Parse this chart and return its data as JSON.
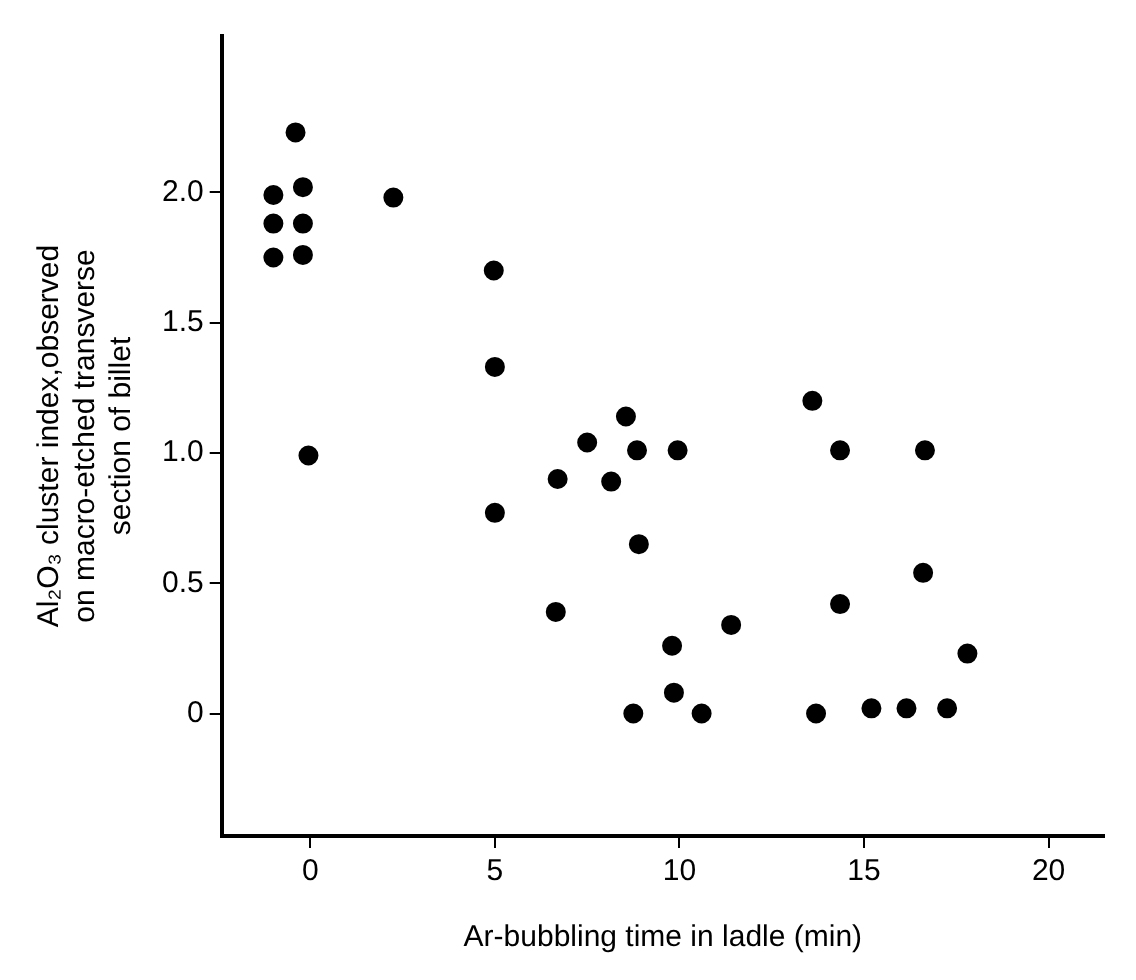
{
  "chart_data": {
    "type": "scatter",
    "xlabel": "Ar-bubbling time in ladle (min)",
    "ylabel": "Al₂O₃ cluster index,observed on macro-etched transverse section of billet",
    "x": [
      -1.0,
      -0.4,
      -0.2,
      -1.0,
      -0.2,
      -1.0,
      -0.2,
      -0.05,
      2.25,
      4.97,
      5.0,
      5.0,
      6.65,
      6.7,
      7.5,
      8.15,
      8.55,
      8.85,
      8.9,
      8.75,
      9.8,
      9.85,
      9.95,
      10.6,
      11.4,
      13.6,
      13.7,
      14.35,
      14.35,
      15.2,
      16.15,
      16.6,
      16.65,
      17.25,
      17.8
    ],
    "values": [
      1.99,
      2.23,
      2.02,
      1.88,
      1.88,
      1.75,
      1.76,
      0.99,
      1.98,
      1.7,
      1.33,
      0.77,
      0.39,
      0.9,
      1.04,
      0.89,
      1.14,
      1.01,
      0.65,
      0.0,
      0.26,
      0.08,
      1.01,
      0.0,
      0.34,
      1.2,
      0.0,
      1.01,
      0.42,
      0.02,
      0.02,
      0.54,
      1.01,
      0.02,
      0.23
    ],
    "color": "#000000",
    "marker": "circle",
    "grid": false,
    "legend": false,
    "xlim": [
      -2.4,
      21.5
    ],
    "xticks": [
      0,
      5,
      10,
      15,
      20
    ],
    "ylim": [
      -0.47,
      2.6
    ],
    "yticks": [
      0,
      0.5,
      {
        "value": 1,
        "label": "1.0"
      },
      1.5,
      {
        "value": 2,
        "label": "2.0"
      }
    ]
  }
}
